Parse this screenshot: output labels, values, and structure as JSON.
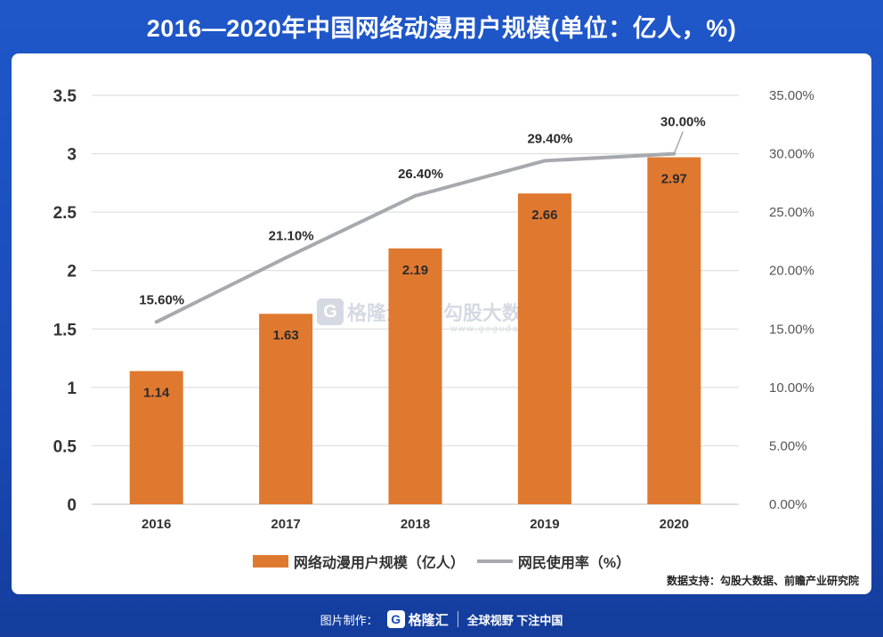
{
  "title": "2016—2020年中国网络动漫用户规模(单位：亿人，%)",
  "source": "数据支持：勾股大数据、前瞻产业研究院",
  "watermark": {
    "left_glyph": "G",
    "left": "格隆汇",
    "right": "勾股大数据",
    "sub": "www.gogudata.com"
  },
  "footer": {
    "made_by": "图片制作：",
    "brand_glyph": "G",
    "brand": "格隆汇",
    "slogan": "全球视野 下注中国"
  },
  "colors": {
    "bar": "#e07930",
    "line": "#a6a9ad",
    "background": "#1a4bb8"
  },
  "chart_data": {
    "type": "bar+line",
    "title": "2016—2020年中国网络动漫用户规模(单位：亿人，%)",
    "categories": [
      "2016",
      "2017",
      "2018",
      "2019",
      "2020"
    ],
    "series": [
      {
        "name": "网络动漫用户规模（亿人）",
        "type": "bar",
        "axis": "left",
        "values": [
          1.14,
          1.63,
          2.19,
          2.66,
          2.97
        ],
        "labels": [
          "1.14",
          "1.63",
          "2.19",
          "2.66",
          "2.97"
        ]
      },
      {
        "name": "网民使用率（%）",
        "type": "line",
        "axis": "right",
        "values": [
          15.6,
          21.1,
          26.4,
          29.4,
          30.0
        ],
        "labels": [
          "15.60%",
          "21.10%",
          "26.40%",
          "29.40%",
          "30.00%"
        ]
      }
    ],
    "y_left": {
      "min": 0,
      "max": 3.5,
      "ticks": [
        "0",
        "0.5",
        "1",
        "1.5",
        "2",
        "2.5",
        "3",
        "3.5"
      ]
    },
    "y_right": {
      "min": 0,
      "max": 35,
      "ticks": [
        "0.00%",
        "5.00%",
        "10.00%",
        "15.00%",
        "20.00%",
        "25.00%",
        "30.00%",
        "35.00%"
      ]
    },
    "grid": true,
    "legend": "bottom"
  }
}
